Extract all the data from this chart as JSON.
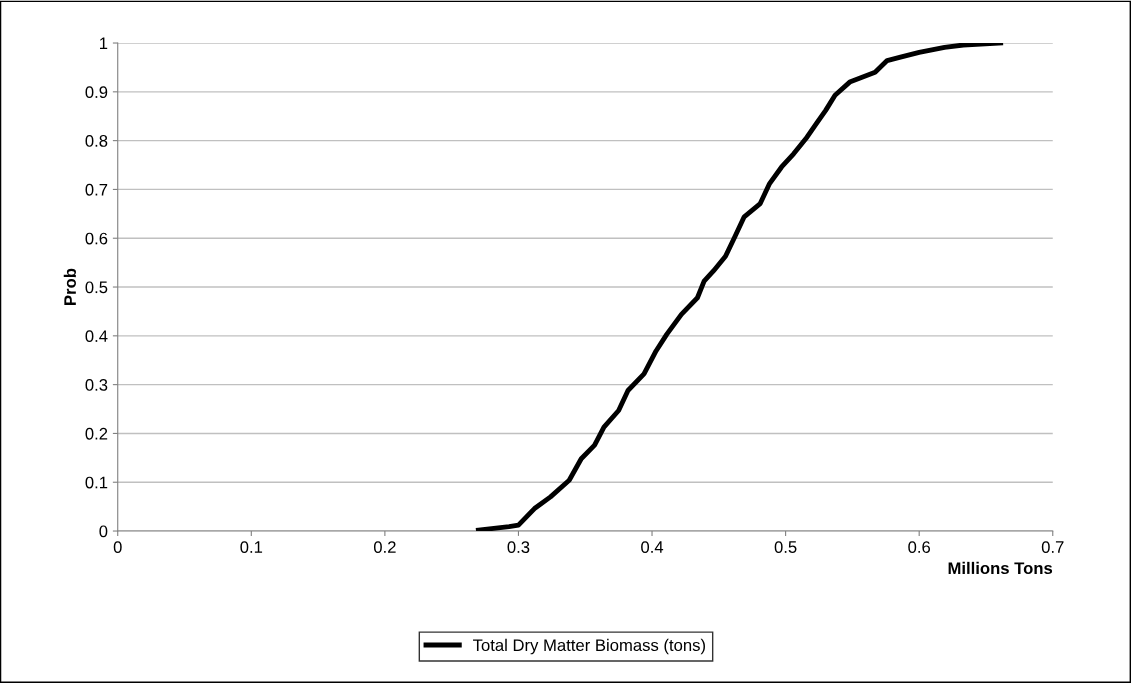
{
  "chart_data": {
    "type": "line",
    "xlabel": "Millions Tons",
    "ylabel": "Prob",
    "xlim": [
      0,
      0.7
    ],
    "xticks": [
      0,
      0.1,
      0.2,
      0.3,
      0.4,
      0.5,
      0.6,
      0.7
    ],
    "ylim": [
      0,
      1
    ],
    "yticks": [
      0,
      0.1,
      0.2,
      0.3,
      0.4,
      0.5,
      0.6,
      0.7,
      0.8,
      0.9,
      1
    ],
    "grid": "y",
    "legend": "bottom",
    "marker": "none",
    "line_style": "solid",
    "series": [
      {
        "name": "Total Dry Matter Biomass (tons)",
        "color": "#000000",
        "x": [
          0.27,
          0.293,
          0.3,
          0.312,
          0.324,
          0.338,
          0.347,
          0.357,
          0.364,
          0.375,
          0.382,
          0.394,
          0.403,
          0.411,
          0.422,
          0.434,
          0.439,
          0.446,
          0.455,
          0.462,
          0.469,
          0.481,
          0.488,
          0.497,
          0.506,
          0.516,
          0.523,
          0.53,
          0.537,
          0.548,
          0.567,
          0.576,
          0.586,
          0.6,
          0.619,
          0.633,
          0.661
        ],
        "values": [
          0.002,
          0.009,
          0.012,
          0.046,
          0.07,
          0.104,
          0.148,
          0.176,
          0.213,
          0.247,
          0.288,
          0.322,
          0.369,
          0.403,
          0.444,
          0.478,
          0.512,
          0.533,
          0.563,
          0.603,
          0.644,
          0.671,
          0.712,
          0.746,
          0.773,
          0.807,
          0.835,
          0.862,
          0.893,
          0.92,
          0.94,
          0.964,
          0.971,
          0.981,
          0.991,
          0.996,
          1.0
        ]
      }
    ]
  }
}
